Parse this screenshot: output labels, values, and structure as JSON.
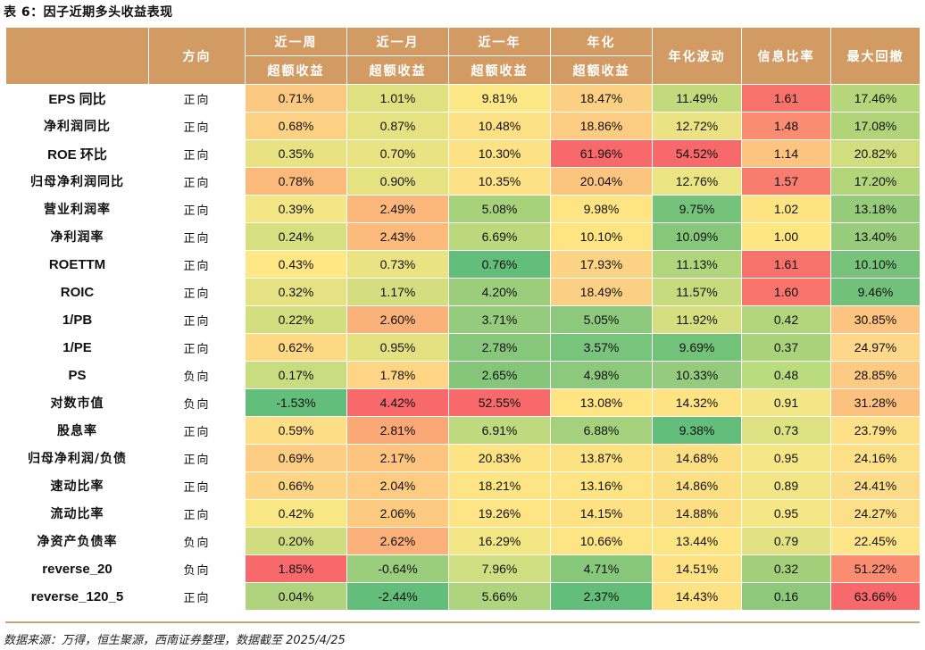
{
  "title": "表 6：因子近期多头收益表现",
  "source": "数据来源：万得，恒生聚源，西南证券整理，数据截至 2025/4/25",
  "headers": {
    "direction": "方向",
    "week_top": "近一周",
    "week_bottom": "超额收益",
    "month_top": "近一月",
    "month_bottom": "超额收益",
    "year_top": "近一年",
    "year_bottom": "超额收益",
    "ann_top": "年化",
    "ann_bottom": "超额收益",
    "vol": "年化波动",
    "ir": "信息比率",
    "mdd": "最大回撤"
  },
  "rows": [
    {
      "name": "EPS 同比",
      "dir": "正向",
      "v": [
        "0.71%",
        "1.01%",
        "9.81%",
        "18.47%",
        "11.49%",
        "1.61",
        "17.46%"
      ],
      "c": [
        "#fbc882",
        "#dfe181",
        "#fde887",
        "#fbd083",
        "#c2da7c",
        "#f8726c",
        "#b5d67b"
      ]
    },
    {
      "name": "净利润同比",
      "dir": "正向",
      "v": [
        "0.68%",
        "0.87%",
        "10.48%",
        "18.86%",
        "12.72%",
        "1.48",
        "17.08%"
      ],
      "c": [
        "#fdd184",
        "#e6e282",
        "#fce085",
        "#fbcc82",
        "#ebe383",
        "#fa8c71",
        "#b1d47a"
      ]
    },
    {
      "name": "ROE 环比",
      "dir": "正向",
      "v": [
        "0.35%",
        "0.70%",
        "10.30%",
        "61.96%",
        "54.52%",
        "1.14",
        "20.82%"
      ],
      "c": [
        "#e9e282",
        "#eae383",
        "#fce185",
        "#f8696b",
        "#f8696b",
        "#fcc47f",
        "#d1de7f"
      ]
    },
    {
      "name": "归母净利润同比",
      "dir": "正向",
      "v": [
        "0.78%",
        "0.90%",
        "10.35%",
        "20.04%",
        "12.76%",
        "1.57",
        "17.20%"
      ],
      "c": [
        "#fbba7c",
        "#e5e282",
        "#fce186",
        "#fbc580",
        "#ebe483",
        "#f97d6e",
        "#b3d57a"
      ]
    },
    {
      "name": "营业利润率",
      "dir": "正向",
      "v": [
        "0.39%",
        "2.49%",
        "5.08%",
        "9.98%",
        "9.75%",
        "1.02",
        "13.18%"
      ],
      "c": [
        "#f3e684",
        "#fcb87b",
        "#a7d17a",
        "#fee482",
        "#75c27a",
        "#fee383",
        "#96cb7c"
      ]
    },
    {
      "name": "净利润率",
      "dir": "正向",
      "v": [
        "0.24%",
        "2.43%",
        "6.69%",
        "10.10%",
        "10.09%",
        "1.00",
        "13.40%"
      ],
      "c": [
        "#d6e080",
        "#fcbb7c",
        "#bcd87d",
        "#fee483",
        "#86c77b",
        "#fee683",
        "#98cc7c"
      ]
    },
    {
      "name": "ROETTM",
      "dir": "正向",
      "v": [
        "0.43%",
        "0.73%",
        "0.76%",
        "17.93%",
        "11.13%",
        "1.61",
        "10.10%"
      ],
      "c": [
        "#fde885",
        "#ebe383",
        "#63be7b",
        "#fcd385",
        "#b1d57b",
        "#f8726c",
        "#78c37b"
      ]
    },
    {
      "name": "ROIC",
      "dir": "正向",
      "v": [
        "0.32%",
        "1.17%",
        "4.20%",
        "18.49%",
        "11.57%",
        "1.60",
        "9.46%"
      ],
      "c": [
        "#e4e282",
        "#d4de80",
        "#9bcd7c",
        "#fcd084",
        "#c6da7e",
        "#f8746c",
        "#72c17b"
      ]
    },
    {
      "name": "1/PB",
      "dir": "正向",
      "v": [
        "0.22%",
        "2.60%",
        "3.71%",
        "5.05%",
        "11.92%",
        "0.42",
        "30.85%"
      ],
      "c": [
        "#d2de80",
        "#fbb27a",
        "#94cb7c",
        "#8dc97c",
        "#d6df80",
        "#b2d57b",
        "#fcc480"
      ]
    },
    {
      "name": "1/PE",
      "dir": "正向",
      "v": [
        "0.62%",
        "0.95%",
        "2.78%",
        "3.57%",
        "9.69%",
        "0.37",
        "24.97%"
      ],
      "c": [
        "#fdd985",
        "#e3e182",
        "#87c77b",
        "#79c47c",
        "#73c27a",
        "#aad27b",
        "#fdd88a"
      ]
    },
    {
      "name": "PS",
      "dir": "负向",
      "v": [
        "0.17%",
        "1.78%",
        "2.65%",
        "4.98%",
        "10.33%",
        "0.48",
        "28.85%"
      ],
      "c": [
        "#c9dc7f",
        "#fdd584",
        "#85c67b",
        "#8cc97c",
        "#94cb7c",
        "#badb7e",
        "#fcca82"
      ]
    },
    {
      "name": "对数市值",
      "dir": "负向",
      "v": [
        "-1.53%",
        "4.42%",
        "52.55%",
        "13.08%",
        "14.32%",
        "0.91",
        "31.28%"
      ],
      "c": [
        "#63be7b",
        "#f8696b",
        "#f8696b",
        "#fee482",
        "#fde384",
        "#f3e686",
        "#fcc17f"
      ]
    },
    {
      "name": "股息率",
      "dir": "正向",
      "v": [
        "0.59%",
        "2.81%",
        "6.91%",
        "6.88%",
        "9.38%",
        "0.73",
        "23.79%"
      ],
      "c": [
        "#fddd86",
        "#fba877",
        "#bfd97e",
        "#a6d17c",
        "#63be7b",
        "#dce181",
        "#fde088"
      ]
    },
    {
      "name": "归母净利润/负债",
      "dir": "正向",
      "v": [
        "0.69%",
        "2.17%",
        "20.83%",
        "13.87%",
        "14.68%",
        "0.95",
        "24.16%"
      ],
      "c": [
        "#fccd83",
        "#fcc47f",
        "#fde384",
        "#fde283",
        "#fddf83",
        "#f6e786",
        "#fde088"
      ]
    },
    {
      "name": "速动比率",
      "dir": "正向",
      "v": [
        "0.66%",
        "2.04%",
        "18.21%",
        "13.16%",
        "14.86%",
        "0.89",
        "24.41%"
      ],
      "c": [
        "#fdd584",
        "#fdcb82",
        "#fee584",
        "#fee482",
        "#fddf83",
        "#f1e585",
        "#fddc89"
      ]
    },
    {
      "name": "流动比率",
      "dir": "正向",
      "v": [
        "0.42%",
        "2.06%",
        "19.26%",
        "14.15%",
        "14.88%",
        "0.95",
        "24.27%"
      ],
      "c": [
        "#f9e785",
        "#fdca81",
        "#fde484",
        "#fde183",
        "#fddf83",
        "#f6e786",
        "#fdde89"
      ]
    },
    {
      "name": "净资产负债率",
      "dir": "负向",
      "v": [
        "0.20%",
        "2.62%",
        "16.29%",
        "10.66%",
        "13.44%",
        "0.79",
        "22.45%"
      ],
      "c": [
        "#cfdd80",
        "#fbb07a",
        "#f3e785",
        "#fde584",
        "#fde584",
        "#e3e282",
        "#fde588"
      ]
    },
    {
      "name": "reverse_20",
      "dir": "负向",
      "v": [
        "1.85%",
        "-0.64%",
        "7.96%",
        "4.71%",
        "14.51%",
        "0.32",
        "51.22%"
      ],
      "c": [
        "#f8696b",
        "#9acd7c",
        "#cfde80",
        "#87c77b",
        "#fde183",
        "#a3cf7b",
        "#fa8c71"
      ]
    },
    {
      "name": "reverse_120_5",
      "dir": "正向",
      "v": [
        "0.04%",
        "-2.44%",
        "5.66%",
        "2.37%",
        "14.43%",
        "0.16",
        "63.66%"
      ],
      "c": [
        "#b0d47d",
        "#63be7b",
        "#aed47d",
        "#63be7b",
        "#fde183",
        "#8ec87b",
        "#f8696b"
      ]
    }
  ]
}
